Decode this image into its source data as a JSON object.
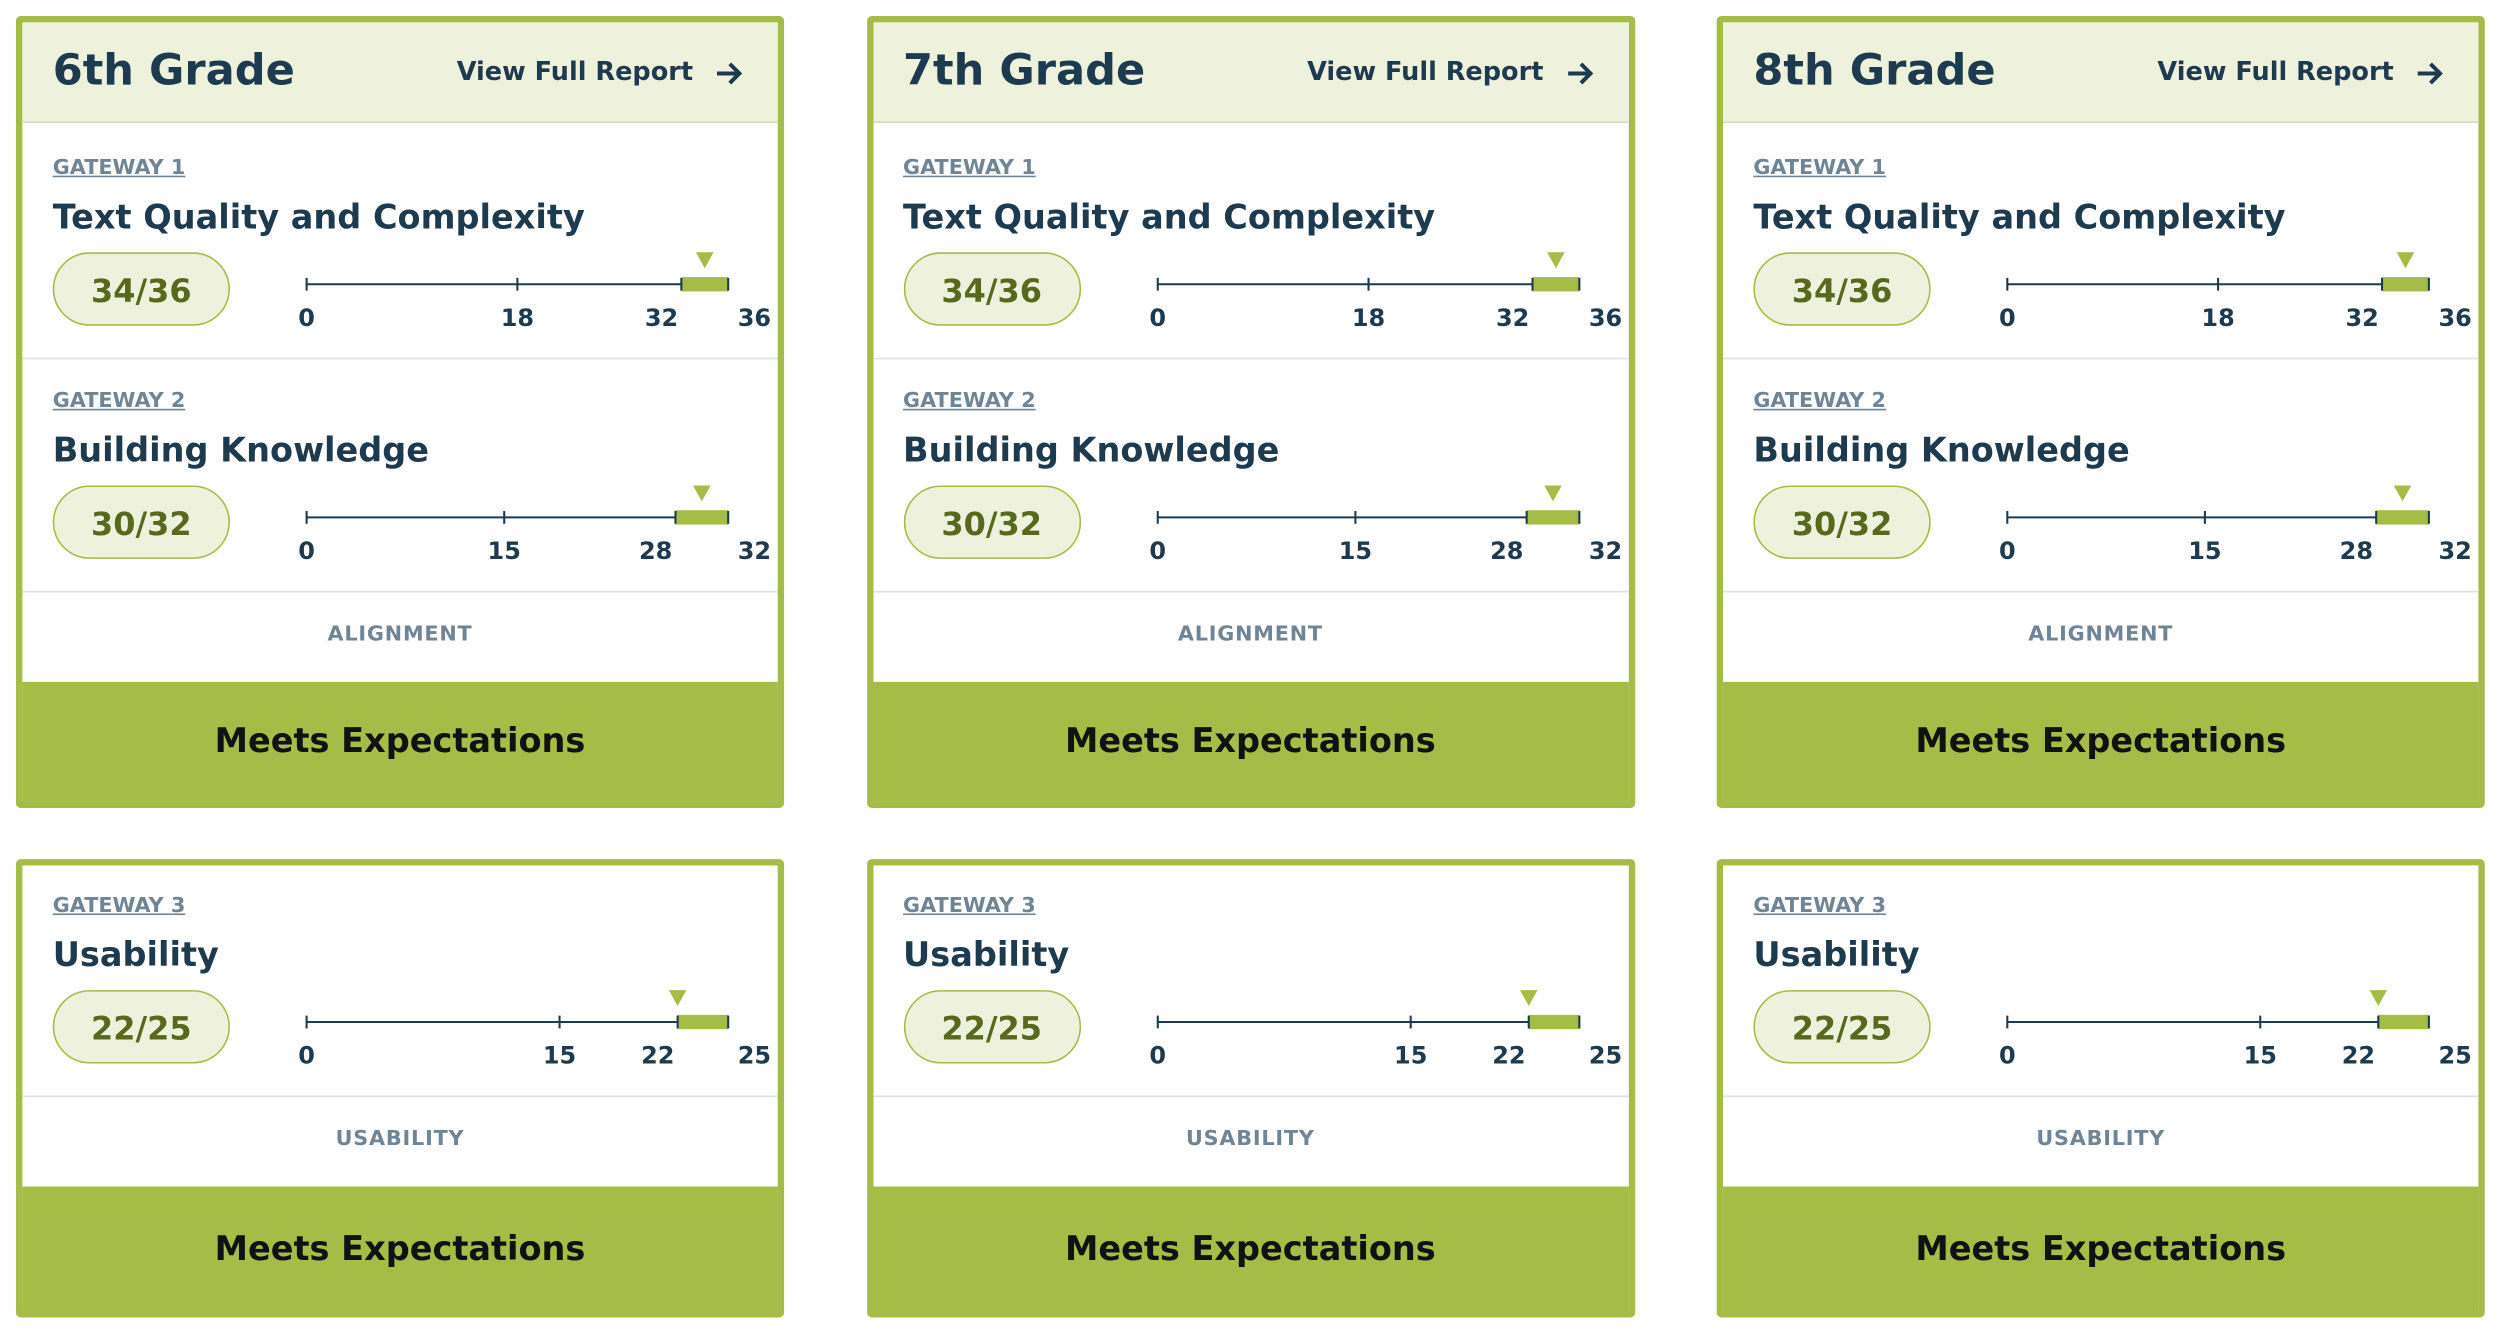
{
  "columns": [
    {
      "grade": "6th Grade",
      "report_link": "View Full Report",
      "top": {
        "gateways": [
          {
            "label": "GATEWAY 1",
            "title": "Text Quality and Complexity",
            "score_label": "34/36",
            "score": 34,
            "ticks": [
              0,
              18,
              32,
              36
            ]
          },
          {
            "label": "GATEWAY 2",
            "title": "Building Knowledge",
            "score_label": "30/32",
            "score": 30,
            "ticks": [
              0,
              15,
              28,
              32
            ]
          }
        ],
        "category": "ALIGNMENT",
        "rating": "Meets Expectations"
      },
      "bottom": {
        "gateways": [
          {
            "label": "GATEWAY 3",
            "title": "Usability",
            "score_label": "22/25",
            "score": 22,
            "ticks": [
              0,
              15,
              22,
              25
            ]
          }
        ],
        "category": "USABILITY",
        "rating": "Meets Expectations"
      }
    },
    {
      "grade": "7th Grade",
      "report_link": "View Full Report",
      "top": {
        "gateways": [
          {
            "label": "GATEWAY 1",
            "title": "Text Quality and Complexity",
            "score_label": "34/36",
            "score": 34,
            "ticks": [
              0,
              18,
              32,
              36
            ]
          },
          {
            "label": "GATEWAY 2",
            "title": "Building Knowledge",
            "score_label": "30/32",
            "score": 30,
            "ticks": [
              0,
              15,
              28,
              32
            ]
          }
        ],
        "category": "ALIGNMENT",
        "rating": "Meets Expectations"
      },
      "bottom": {
        "gateways": [
          {
            "label": "GATEWAY 3",
            "title": "Usability",
            "score_label": "22/25",
            "score": 22,
            "ticks": [
              0,
              15,
              22,
              25
            ]
          }
        ],
        "category": "USABILITY",
        "rating": "Meets Expectations"
      }
    },
    {
      "grade": "8th Grade",
      "report_link": "View Full Report",
      "top": {
        "gateways": [
          {
            "label": "GATEWAY 1",
            "title": "Text Quality and Complexity",
            "score_label": "34/36",
            "score": 34,
            "ticks": [
              0,
              18,
              32,
              36
            ]
          },
          {
            "label": "GATEWAY 2",
            "title": "Building Knowledge",
            "score_label": "30/32",
            "score": 30,
            "ticks": [
              0,
              15,
              28,
              32
            ]
          }
        ],
        "category": "ALIGNMENT",
        "rating": "Meets Expectations"
      },
      "bottom": {
        "gateways": [
          {
            "label": "GATEWAY 3",
            "title": "Usability",
            "score_label": "22/25",
            "score": 22,
            "ticks": [
              0,
              15,
              22,
              25
            ]
          }
        ],
        "category": "USABILITY",
        "rating": "Meets Expectations"
      }
    }
  ]
}
